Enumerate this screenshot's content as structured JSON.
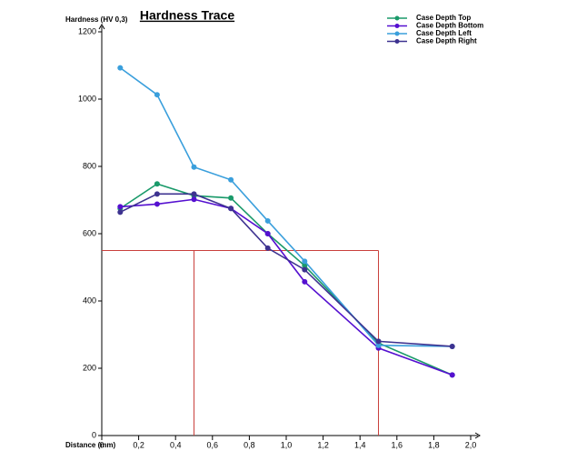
{
  "chart_data": {
    "type": "line",
    "title": "Hardness Trace",
    "y_label": "Hardness (HV 0,3)",
    "x_label": "Distance (mm)",
    "x": [
      0.1,
      0.3,
      0.5,
      0.7,
      0.9,
      1.1,
      1.5,
      1.9
    ],
    "series": [
      {
        "name": "Case Depth Top",
        "color": "#1a9a6a",
        "values": [
          675,
          748,
          713,
          706,
          600,
          505,
          275,
          180
        ]
      },
      {
        "name": "Case Depth Bottom",
        "color": "#5510d0",
        "values": [
          680,
          688,
          702,
          675,
          600,
          457,
          260,
          180
        ]
      },
      {
        "name": "Case Depth Left",
        "color": "#3a9fdc",
        "values": [
          1093,
          1013,
          798,
          760,
          638,
          518,
          268,
          265
        ]
      },
      {
        "name": "Case Depth Right",
        "color": "#3d3290",
        "values": [
          664,
          718,
          718,
          675,
          557,
          493,
          280,
          265
        ]
      }
    ],
    "reference": {
      "hardness": 550,
      "distances": [
        0.5,
        1.5
      ],
      "color": "#c9403c"
    },
    "xlim": [
      0,
      2.0
    ],
    "xticks": [
      0,
      {
        "value": 0.2,
        "label": "0,2"
      },
      {
        "value": 0.4,
        "label": "0,4"
      },
      {
        "value": 0.6,
        "label": "0,6"
      },
      {
        "value": 0.8,
        "label": "0,8"
      },
      {
        "value": 1.0,
        "label": "1,0"
      },
      {
        "value": 1.2,
        "label": "1,2"
      },
      {
        "value": 1.4,
        "label": "1,4"
      },
      {
        "value": 1.6,
        "label": "1,6"
      },
      {
        "value": 1.8,
        "label": "1,8"
      },
      {
        "value": 2.0,
        "label": "2,0"
      }
    ],
    "ylim": [
      0,
      1200
    ],
    "yticks": [
      0,
      200,
      400,
      600,
      800,
      1000,
      1200
    ],
    "legend": "top-right"
  }
}
